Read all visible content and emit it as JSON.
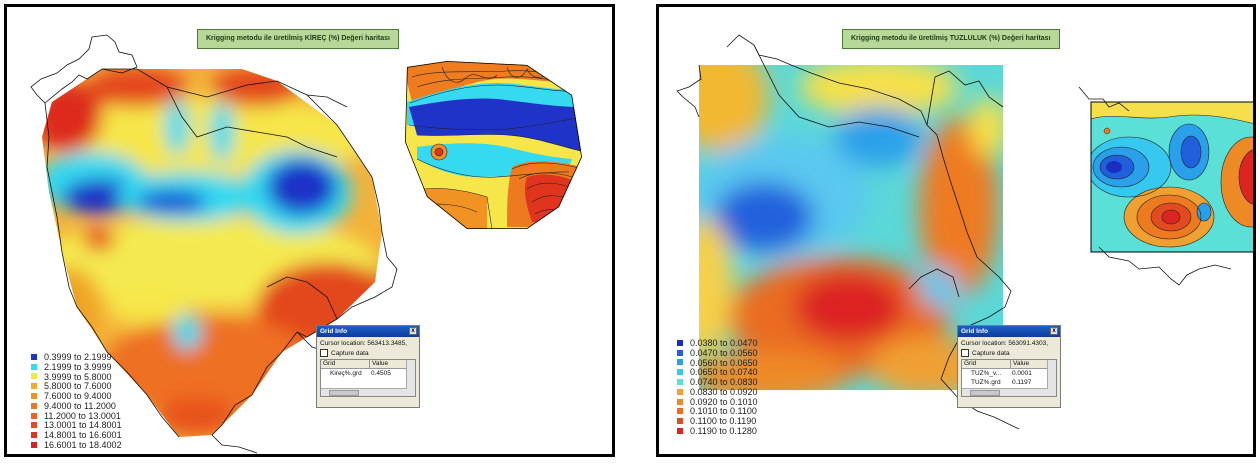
{
  "left_panel": {
    "title": "Krigging metodu ile üretilmiş  KİREÇ (%) Değeri haritası",
    "legend": [
      {
        "label": "0.3999 to 2.1999",
        "color": "#1f33c8"
      },
      {
        "label": "2.1999 to 3.9999",
        "color": "#35d9f0"
      },
      {
        "label": "3.9999 to 5.8000",
        "color": "#f6e64a"
      },
      {
        "label": "5.8000 to 7.6000",
        "color": "#f4aa26"
      },
      {
        "label": "7.6000 to 9.4000",
        "color": "#f19223"
      },
      {
        "label": "9.4000 to 11.2000",
        "color": "#ee7a20"
      },
      {
        "label": "11.2000 to 13.0001",
        "color": "#ea6120"
      },
      {
        "label": "13.0001 to 14.8001",
        "color": "#e64a20"
      },
      {
        "label": "14.8001 to 16.6001",
        "color": "#e1341f"
      },
      {
        "label": "16.6001 to 18.4002",
        "color": "#dd1f1f"
      }
    ],
    "grid_info": {
      "title": "Grid Info",
      "close": "x",
      "cursor_location": "Cursor location: 563413.3485,",
      "capture_label": "Capture data",
      "columns": [
        "Grid",
        "Value"
      ],
      "rows": [
        [
          "Kireç%.grd",
          "0.4505"
        ]
      ]
    }
  },
  "right_panel": {
    "title": "Krigging metodu ile üretilmiş  TUZLULUK (%) Değeri haritası",
    "legend": [
      {
        "label": "0.0380 to 0.0470",
        "color": "#1a2fc0"
      },
      {
        "label": "0.0470 to 0.0560",
        "color": "#2060dc"
      },
      {
        "label": "0.0560 to 0.0650",
        "color": "#2aa0ea"
      },
      {
        "label": "0.0650 to 0.0740",
        "color": "#36c8ee"
      },
      {
        "label": "0.0740 to 0.0830",
        "color": "#5ae0d6"
      },
      {
        "label": "0.0830 to 0.0920",
        "color": "#f0a030"
      },
      {
        "label": "0.0920 to 0.1010",
        "color": "#ee8a26"
      },
      {
        "label": "0.1010 to 0.1100",
        "color": "#ea6c22"
      },
      {
        "label": "0.1100 to 0.1190",
        "color": "#e44a20"
      },
      {
        "label": "0.1190 to 0.1280",
        "color": "#dc2420"
      }
    ],
    "grid_info": {
      "title": "Grid Info",
      "close": "x",
      "cursor_location": "Cursor location: 563091.4303,",
      "capture_label": "Capture data",
      "columns": [
        "Grid",
        "Value"
      ],
      "rows": [
        [
          "TUZ%_v...",
          "0.0001"
        ],
        [
          "TUZ%.grd",
          "0.1197"
        ]
      ]
    }
  }
}
